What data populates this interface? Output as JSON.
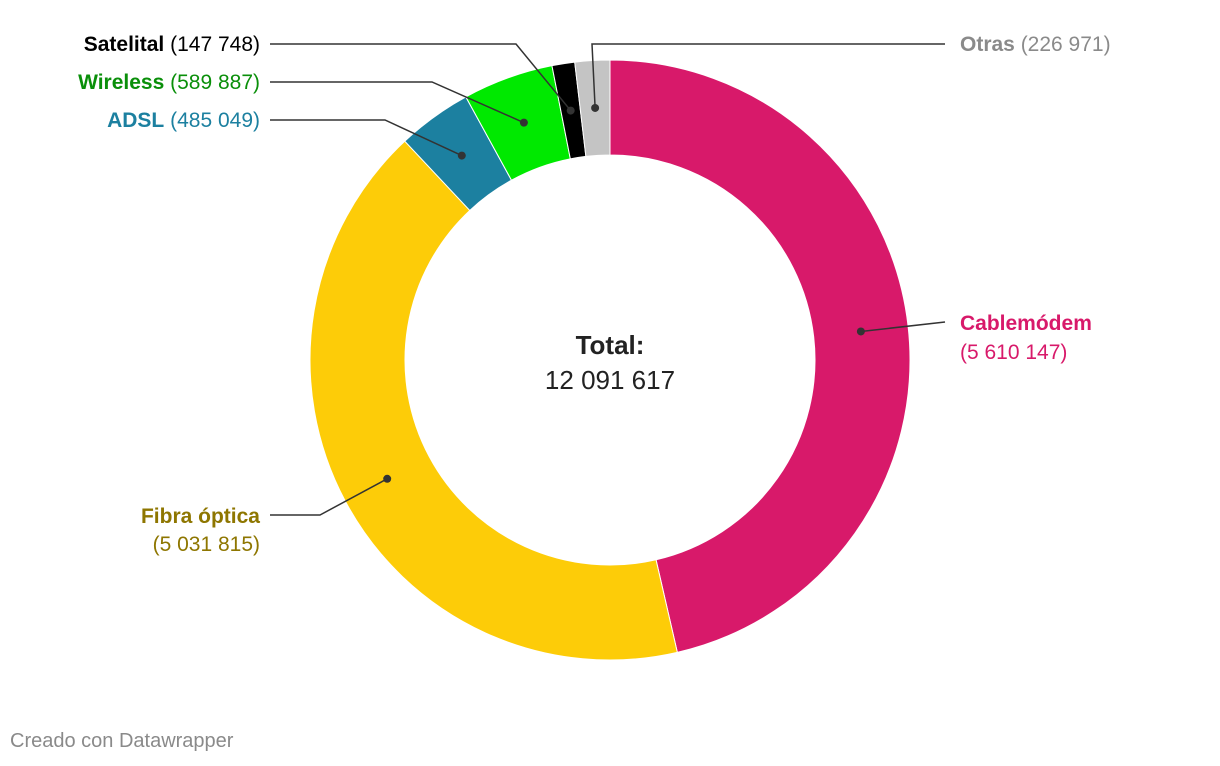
{
  "chart_data": {
    "type": "pie",
    "style": "donut",
    "center_label": "Total:",
    "center_value": "12 091 617",
    "total": 12091617,
    "slices": [
      {
        "name": "Cablemódem",
        "value": 5610147,
        "value_label": "(5 610 147)",
        "color": "#d8196a",
        "text_color": "#d8196a",
        "label_side": "right"
      },
      {
        "name": "Fibra óptica",
        "value": 5031815,
        "value_label": "(5 031 815)",
        "color": "#fdcc08",
        "text_color": "#8e7600",
        "label_side": "left"
      },
      {
        "name": "ADSL",
        "value": 485049,
        "value_label": "(485 049)",
        "color": "#1c80a0",
        "text_color": "#1c80a0",
        "label_side": "left"
      },
      {
        "name": "Wireless",
        "value": 589887,
        "value_label": "(589 887)",
        "color": "#00e900",
        "text_color": "#0a8f0a",
        "label_side": "left"
      },
      {
        "name": "Satelital",
        "value": 147748,
        "value_label": "(147 748)",
        "color": "#000000",
        "text_color": "#000000",
        "label_side": "left"
      },
      {
        "name": "Otras",
        "value": 226971,
        "value_label": "(226 971)",
        "color": "#c4c4c4",
        "text_color": "#8a8a8a",
        "label_side": "right"
      }
    ]
  },
  "footer": "Creado con Datawrapper"
}
